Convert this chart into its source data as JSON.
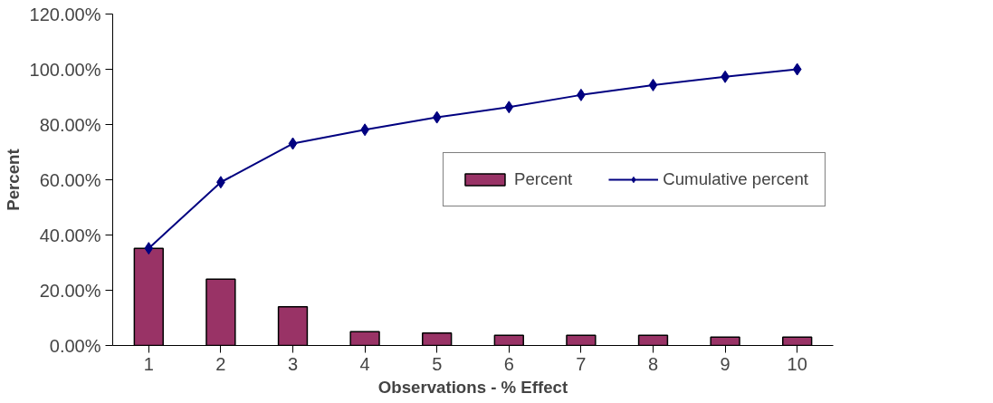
{
  "chart_data": {
    "type": "bar",
    "xlabel": "Observations - % Effect",
    "ylabel": "Percent",
    "categories": [
      "1",
      "2",
      "3",
      "4",
      "5",
      "6",
      "7",
      "8",
      "9",
      "10"
    ],
    "series": [
      {
        "name": "Percent",
        "color": "#993366",
        "values": [
          35.2,
          24,
          14,
          5,
          4.5,
          3.7,
          3.7,
          3.7,
          3,
          3
        ]
      },
      {
        "name": "Cumulative percent",
        "type": "line",
        "color": "#000080",
        "marker": "diamond",
        "values": [
          35.2,
          59.1,
          73.1,
          78.1,
          82.6,
          86.3,
          90.7,
          94.3,
          97.3,
          100
        ]
      }
    ],
    "ylim": [
      0,
      120
    ],
    "yticks": [
      {
        "value": 0,
        "label": "0.00%"
      },
      {
        "value": 20,
        "label": "20.00%"
      },
      {
        "value": 40,
        "label": "40.00%"
      },
      {
        "value": 60,
        "label": "60.00%"
      },
      {
        "value": 80,
        "label": "80.00%"
      },
      {
        "value": 100,
        "label": "100.00%"
      },
      {
        "value": 120,
        "label": "120.00%"
      }
    ],
    "grid": false,
    "legend": "right"
  }
}
